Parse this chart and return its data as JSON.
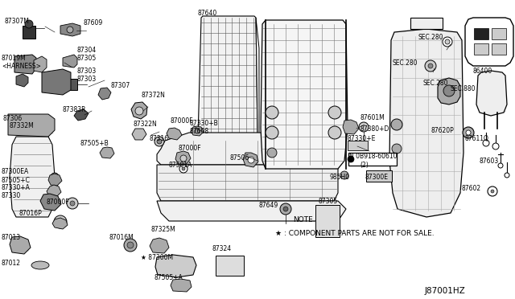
{
  "bg_color": "#ffffff",
  "line_color": "#111111",
  "diagram_id": "J87001HZ",
  "note_line1": "NOTE.",
  "note_line2": "★ : COMPONENT PARTS ARE NOT FOR SALE.",
  "figsize": [
    6.4,
    3.72
  ],
  "dpi": 100
}
